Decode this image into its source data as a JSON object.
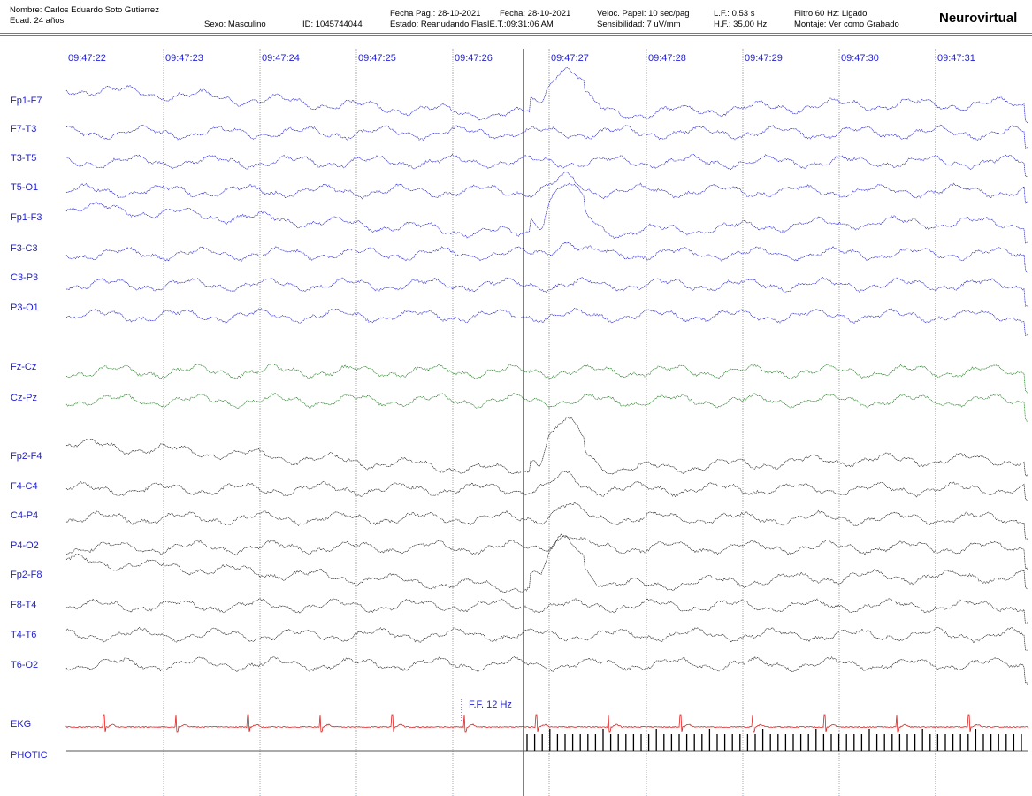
{
  "header": {
    "patient_name": "Nombre: Carlos Eduardo  Soto Gutierrez",
    "age": "Edad: 24 años.",
    "sex": "Sexo: Masculino",
    "id": "ID: 1045744044",
    "page_date": "Fecha Pág.: 28-10-2021",
    "date": "Fecha: 28-10-2021",
    "status": "Estado: Reanudando FlasIE.T.:09:31:06 AM",
    "paper_speed": "Veloc. Papel: 10 sec/pag",
    "sensitivity": "Sensibilidad: 7 uV/mm",
    "lf": "L.F.: 0,53 s",
    "hf": "H.F.: 35,00 Hz",
    "filter": "Filtro 60 Hz: Ligado",
    "montage": "Montaje: Ver como Grabado",
    "brand": "Neurovirtual"
  },
  "timeline": [
    "09:47:22",
    "09:47:23",
    "09:47:24",
    "09:47:25",
    "09:47:26",
    "09:47:27",
    "09:47:28",
    "09:47:29",
    "09:47:30",
    "09:47:31"
  ],
  "channels": [
    {
      "label": "Fp1-F7",
      "color": "#1f1fcf",
      "group": "left"
    },
    {
      "label": "F7-T3",
      "color": "#1f1fcf",
      "group": "left"
    },
    {
      "label": "T3-T5",
      "color": "#1f1fcf",
      "group": "left"
    },
    {
      "label": "T5-O1",
      "color": "#1f1fcf",
      "group": "left"
    },
    {
      "label": "Fp1-F3",
      "color": "#1f1fcf",
      "group": "left"
    },
    {
      "label": "F3-C3",
      "color": "#1f1fcf",
      "group": "left"
    },
    {
      "label": "C3-P3",
      "color": "#1f1fcf",
      "group": "left"
    },
    {
      "label": "P3-O1",
      "color": "#1f1fcf",
      "group": "left"
    },
    {
      "label": "Fz-Cz",
      "color": "#1a7a1a",
      "group": "midline"
    },
    {
      "label": "Cz-Pz",
      "color": "#1a7a1a",
      "group": "midline"
    },
    {
      "label": "Fp2-F4",
      "color": "#222222",
      "group": "right"
    },
    {
      "label": "F4-C4",
      "color": "#222222",
      "group": "right"
    },
    {
      "label": "C4-P4",
      "color": "#222222",
      "group": "right"
    },
    {
      "label": "P4-O2",
      "color": "#222222",
      "group": "right"
    },
    {
      "label": "Fp2-F8",
      "color": "#222222",
      "group": "right"
    },
    {
      "label": "F8-T4",
      "color": "#222222",
      "group": "right"
    },
    {
      "label": "T4-T6",
      "color": "#222222",
      "group": "right"
    },
    {
      "label": "T6-O2",
      "color": "#222222",
      "group": "right"
    },
    {
      "label": "EKG",
      "color": "#e02020",
      "group": "ekg"
    },
    {
      "label": "PHOTIC",
      "color": "#000000",
      "group": "photic"
    }
  ],
  "annotation": "F.F. 12 Hz",
  "colors": {
    "label_text": "#1f1fcf",
    "time_text": "#1f1fcf",
    "left": "#1f1fcf",
    "midline": "#1a7a1a",
    "right": "#222222",
    "ekg": "#e02020",
    "second_marker": "#7fb4e6",
    "event_marker": "#000000",
    "red_marker": "#f08080",
    "purple_marker": "#9a7ae0"
  }
}
